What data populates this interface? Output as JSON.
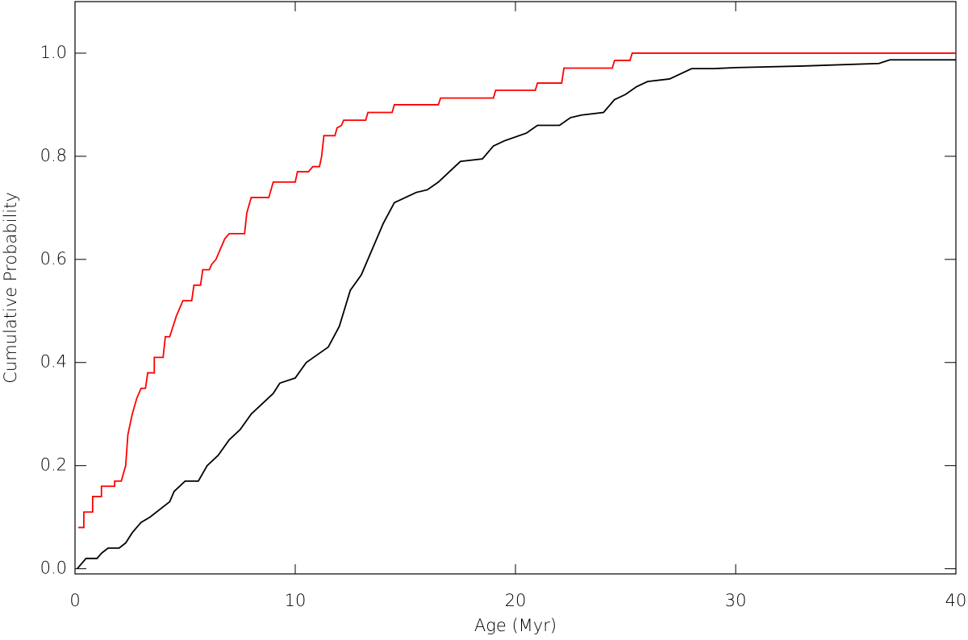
{
  "chart_data": {
    "type": "line",
    "xlabel": "Age (Myr)",
    "ylabel": "Cumulative Probability",
    "xlim": [
      0,
      40
    ],
    "xticks": [
      0,
      10,
      20,
      30,
      40
    ],
    "ylim": [
      -0.01,
      1.1
    ],
    "yticks": [
      {
        "value": 0,
        "label": "0.0"
      },
      0.2,
      0.4,
      0.6,
      0.8,
      {
        "value": 1,
        "label": "1.0"
      }
    ],
    "series": [
      {
        "color": "#ff0000",
        "x": [
          0.15,
          0.4,
          0.4,
          0.8,
          0.8,
          1.2,
          1.2,
          1.8,
          1.8,
          2.1,
          2.3,
          2.4,
          2.6,
          2.8,
          3.0,
          3.2,
          3.3,
          3.6,
          3.6,
          4.0,
          4.1,
          4.3,
          4.6,
          4.9,
          5.3,
          5.4,
          5.7,
          5.8,
          6.1,
          6.2,
          6.4,
          6.6,
          6.8,
          7.0,
          7.7,
          7.8,
          8.0,
          8.8,
          9.0,
          10.0,
          10.1,
          10.6,
          10.8,
          11.1,
          11.2,
          11.3,
          11.8,
          11.9,
          12.1,
          12.2,
          13.2,
          13.3,
          14.4,
          14.5,
          16.5,
          16.6,
          19.0,
          19.1,
          20.9,
          21.0,
          22.1,
          22.2,
          24.4,
          24.5,
          25.2,
          25.3,
          40
        ],
        "values": [
          0.08,
          0.08,
          0.11,
          0.11,
          0.14,
          0.14,
          0.16,
          0.16,
          0.17,
          0.17,
          0.2,
          0.26,
          0.3,
          0.33,
          0.35,
          0.35,
          0.38,
          0.38,
          0.41,
          0.41,
          0.45,
          0.45,
          0.49,
          0.52,
          0.52,
          0.55,
          0.55,
          0.58,
          0.58,
          0.59,
          0.6,
          0.62,
          0.64,
          0.65,
          0.65,
          0.69,
          0.72,
          0.72,
          0.75,
          0.75,
          0.77,
          0.77,
          0.78,
          0.78,
          0.8,
          0.84,
          0.84,
          0.855,
          0.86,
          0.87,
          0.87,
          0.885,
          0.885,
          0.9,
          0.9,
          0.913,
          0.913,
          0.928,
          0.928,
          0.942,
          0.942,
          0.971,
          0.971,
          0.986,
          0.986,
          1.0,
          1.0
        ]
      },
      {
        "color": "#000000",
        "x": [
          0.1,
          0.3,
          0.5,
          1.0,
          1.2,
          1.5,
          2.0,
          2.3,
          2.6,
          3.0,
          3.4,
          4.0,
          4.3,
          4.5,
          5.0,
          5.6,
          6.0,
          6.5,
          7.0,
          7.5,
          8.0,
          8.5,
          9.0,
          9.3,
          10.0,
          10.5,
          11.5,
          12.0,
          12.5,
          13.0,
          13.5,
          14.0,
          14.5,
          15.0,
          15.5,
          16.0,
          16.5,
          17.0,
          17.5,
          18.5,
          19.0,
          19.5,
          20.5,
          21.0,
          22.0,
          22.5,
          23.0,
          24.0,
          24.5,
          25.0,
          25.5,
          26.0,
          27.0,
          27.5,
          28.0,
          29.0,
          30.0,
          33.0,
          36.5,
          37.0,
          40
        ],
        "values": [
          0.0,
          0.01,
          0.02,
          0.02,
          0.03,
          0.04,
          0.04,
          0.05,
          0.07,
          0.09,
          0.1,
          0.12,
          0.13,
          0.15,
          0.17,
          0.17,
          0.2,
          0.22,
          0.25,
          0.27,
          0.3,
          0.32,
          0.34,
          0.36,
          0.37,
          0.4,
          0.43,
          0.47,
          0.54,
          0.57,
          0.62,
          0.67,
          0.71,
          0.72,
          0.73,
          0.735,
          0.75,
          0.77,
          0.79,
          0.795,
          0.82,
          0.83,
          0.845,
          0.86,
          0.86,
          0.875,
          0.88,
          0.885,
          0.91,
          0.92,
          0.935,
          0.945,
          0.95,
          0.96,
          0.97,
          0.97,
          0.972,
          0.975,
          0.98,
          0.987,
          0.987
        ]
      }
    ]
  }
}
